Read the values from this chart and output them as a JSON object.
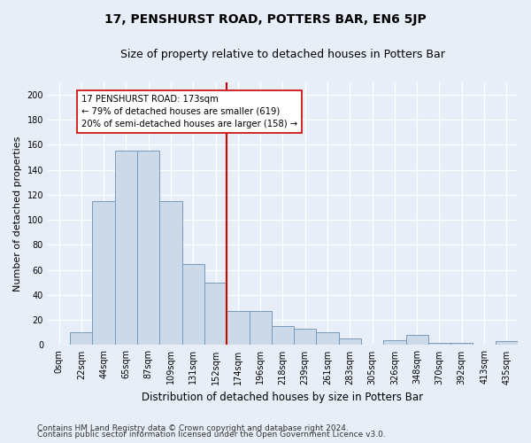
{
  "title": "17, PENSHURST ROAD, POTTERS BAR, EN6 5JP",
  "subtitle": "Size of property relative to detached houses in Potters Bar",
  "xlabel": "Distribution of detached houses by size in Potters Bar",
  "ylabel": "Number of detached properties",
  "bin_labels": [
    "0sqm",
    "22sqm",
    "44sqm",
    "65sqm",
    "87sqm",
    "109sqm",
    "131sqm",
    "152sqm",
    "174sqm",
    "196sqm",
    "218sqm",
    "239sqm",
    "261sqm",
    "283sqm",
    "305sqm",
    "326sqm",
    "348sqm",
    "370sqm",
    "392sqm",
    "413sqm",
    "435sqm"
  ],
  "bar_heights": [
    0,
    10,
    115,
    155,
    155,
    115,
    65,
    50,
    27,
    27,
    15,
    13,
    10,
    5,
    0,
    4,
    8,
    2,
    2,
    0,
    3
  ],
  "bar_color": "#ccd9e8",
  "bar_edge_color": "#7799bb",
  "vline_index": 8,
  "vline_color": "#cc0000",
  "annotation_text": "17 PENSHURST ROAD: 173sqm\n← 79% of detached houses are smaller (619)\n20% of semi-detached houses are larger (158) →",
  "annotation_box_color": "#ffffff",
  "annotation_box_edge": "#cc0000",
  "ylim": [
    0,
    210
  ],
  "yticks": [
    0,
    20,
    40,
    60,
    80,
    100,
    120,
    140,
    160,
    180,
    200
  ],
  "footer1": "Contains HM Land Registry data © Crown copyright and database right 2024.",
  "footer2": "Contains public sector information licensed under the Open Government Licence v3.0.",
  "bg_color": "#e8eef8",
  "plot_bg_color": "#e8eef8",
  "grid_color": "#ffffff",
  "title_fontsize": 10,
  "subtitle_fontsize": 9,
  "xlabel_fontsize": 8.5,
  "ylabel_fontsize": 8,
  "tick_fontsize": 7,
  "footer_fontsize": 6.5
}
